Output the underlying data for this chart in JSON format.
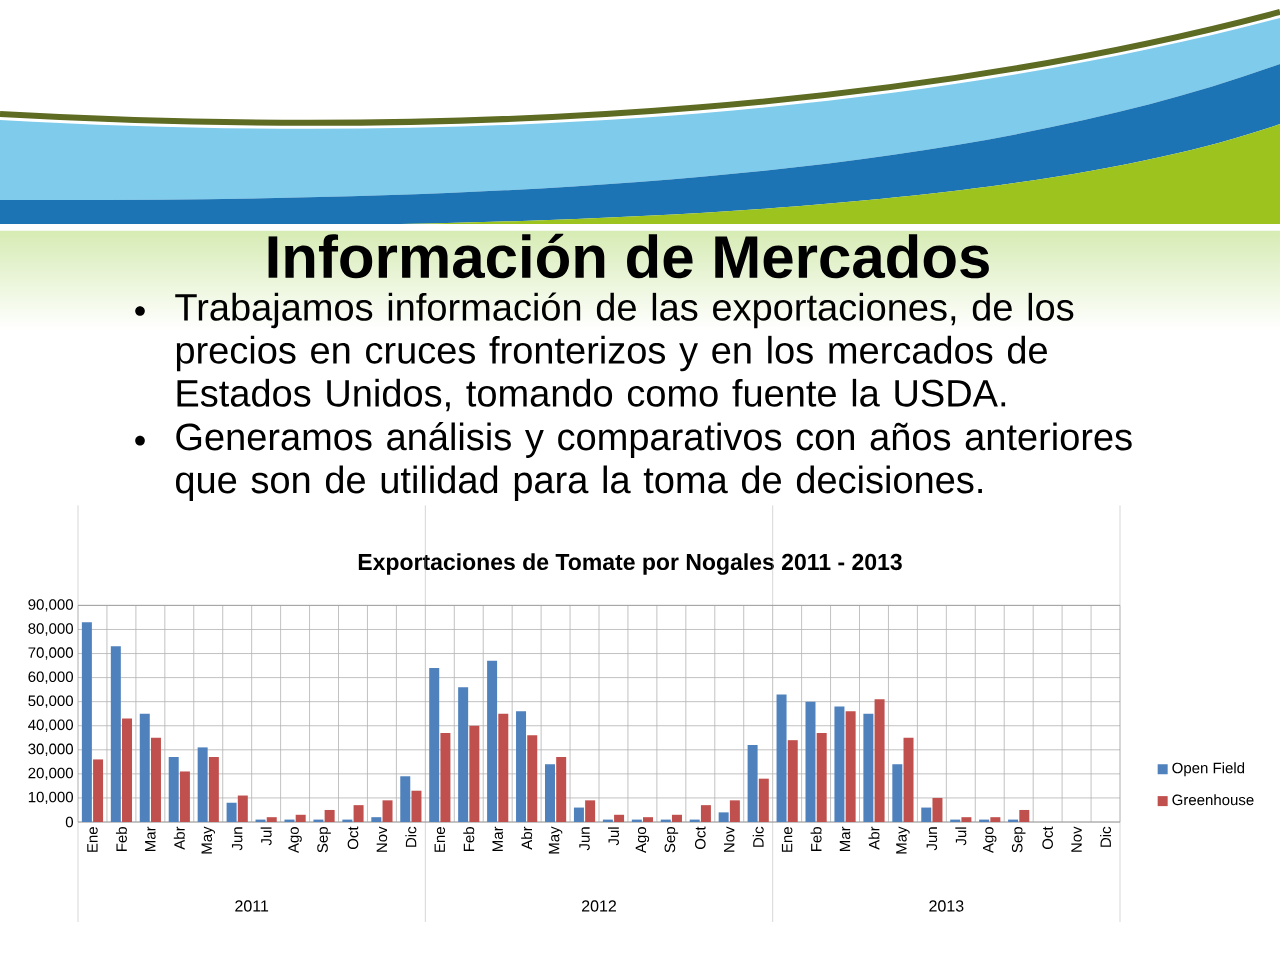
{
  "chart_data": {
    "type": "bar",
    "title": "Información de Mercados",
    "subtitle": "Exportaciones de Tomate por Nogales 2011 - 2013",
    "annotations": [
      "Trabajamos información de las exportaciones, de los precios en cruces fronterizos y en los mercados de Estados Unidos, tomando como fuente la USDA.",
      "Generamos análisis y comparativos con años anteriores que son de utilidad para la toma de decisiones.",
      "2011",
      "2012",
      "2013"
    ],
    "categories": [
      "Ene",
      "Feb",
      "Mar",
      "Abr",
      "May",
      "Jun",
      "Jul",
      "Ago",
      "Sep",
      "Oct",
      "Nov",
      "Dic",
      "Ene",
      "Feb",
      "Mar",
      "Abr",
      "May",
      "Jun",
      "Jul",
      "Ago",
      "Sep",
      "Oct",
      "Nov",
      "Dic",
      "Ene",
      "Feb",
      "Mar",
      "Abr",
      "May",
      "Jun",
      "Jul",
      "Ago",
      "Sep",
      "Oct",
      "Nov",
      "Dic"
    ],
    "series": [
      {
        "name": "Open Field",
        "color": "#4f81bd",
        "values": [
          83000,
          73000,
          45000,
          27000,
          31000,
          8000,
          1000,
          1000,
          1000,
          1000,
          2000,
          19000,
          64000,
          56000,
          67000,
          46000,
          24000,
          6000,
          1000,
          1000,
          1000,
          1000,
          4000,
          32000,
          53000,
          50000,
          48000,
          45000,
          24000,
          6000,
          1000,
          1000,
          1000,
          null,
          null,
          null
        ]
      },
      {
        "name": "Greenhouse",
        "color": "#c0504d",
        "values": [
          26000,
          43000,
          35000,
          21000,
          27000,
          11000,
          2000,
          3000,
          5000,
          7000,
          9000,
          13000,
          37000,
          40000,
          45000,
          36000,
          27000,
          9000,
          3000,
          2000,
          3000,
          7000,
          9000,
          18000,
          34000,
          37000,
          46000,
          51000,
          35000,
          10000,
          2000,
          2000,
          5000,
          null,
          null,
          null
        ]
      }
    ],
    "ylim": [
      0,
      90000
    ],
    "yticks": [
      0,
      {
        "value": 10000,
        "label": "10,000"
      },
      {
        "value": 20000,
        "label": "20,000"
      },
      {
        "value": 30000,
        "label": "30,000"
      },
      {
        "value": 40000,
        "label": "40,000"
      },
      {
        "value": 50000,
        "label": "50,000"
      },
      {
        "value": 60000,
        "label": "60,000"
      },
      {
        "value": 70000,
        "label": "70,000"
      },
      {
        "value": 80000,
        "label": "80,000"
      },
      {
        "value": 90000,
        "label": "90,000"
      }
    ],
    "grid": true,
    "legend": "right"
  }
}
